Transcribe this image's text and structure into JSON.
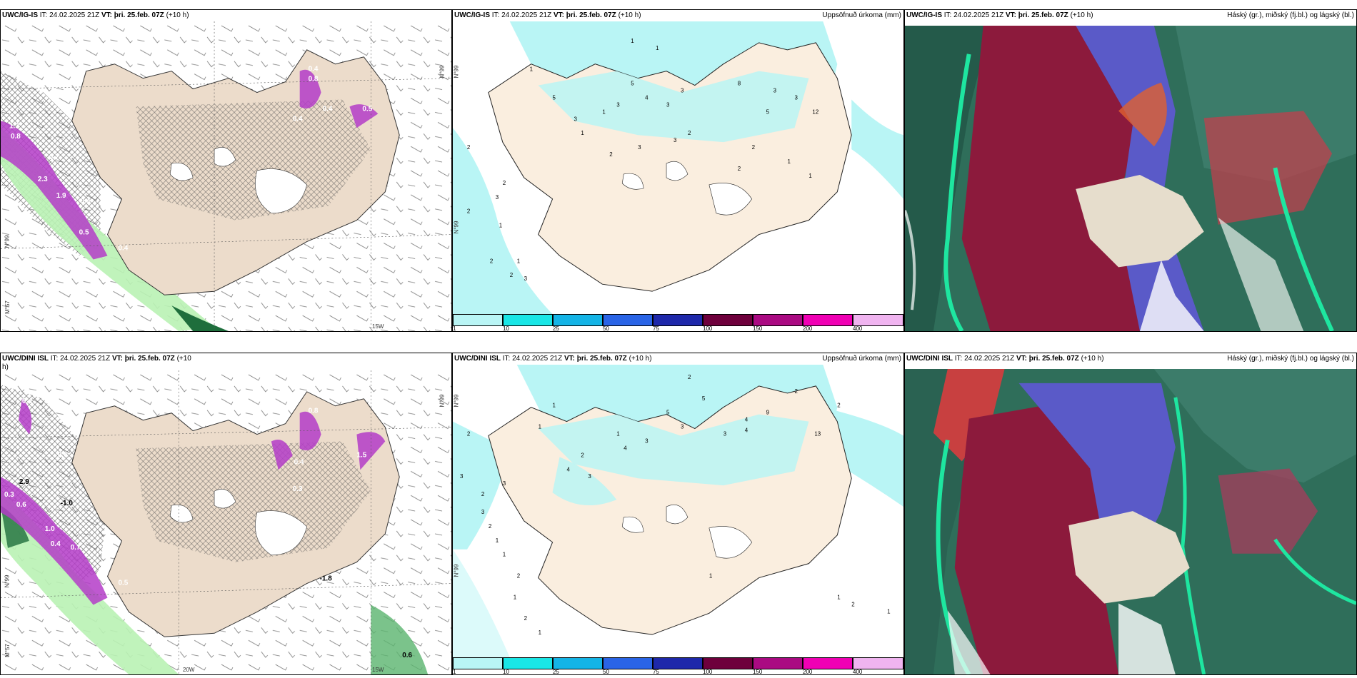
{
  "panels": [
    {
      "model": "UWC/IG-IS",
      "init": "IT: 24.02.2025 21Z",
      "valid": "VT: þri. 25.feb. 07Z",
      "lead": "(+10 h)",
      "product": "",
      "axis": [
        "N°99",
        "N°99",
        "M°57",
        "15W"
      ]
    },
    {
      "model": "UWC/IG-IS",
      "init": "IT: 24.02.2025 21Z",
      "valid": "VT: þri. 25.feb. 07Z",
      "lead": "(+10 h)",
      "product": "Uppsöfnuð úrkoma (mm)",
      "axis": [
        "N°99",
        "N°99"
      ]
    },
    {
      "model": "UWC/IG-IS",
      "init": "IT: 24.02.2025 21Z",
      "valid": "VT: þri. 25.feb. 07Z",
      "lead": "(+10 h)",
      "product": "Háský (gr.), miðský (fj.bl.) og lágský (bl.)"
    },
    {
      "model": "UWC/DINI ISL",
      "init": "IT: 24.02.2025 21Z",
      "valid": "VT: þri. 25.feb. 07Z",
      "lead": "(+10",
      "lead2": "h)",
      "product": "",
      "axis": [
        "N°99",
        "N°99",
        "M°57",
        "20W",
        "15W"
      ]
    },
    {
      "model": "UWC/DINI ISL",
      "init": "IT: 24.02.2025 21Z",
      "valid": "VT: þri. 25.feb. 07Z",
      "lead": "(+10 h)",
      "product": "Uppsöfnuð úrkoma (mm)",
      "axis": [
        "N°99",
        "N°99"
      ]
    },
    {
      "model": "UWC/DINI ISL",
      "init": "IT: 24.02.2025 21Z",
      "valid": "VT: þri. 25.feb. 07Z",
      "lead": "(+10 h)",
      "product": "Háský (gr.), miðský (fj.bl.) og lágský (bl.)"
    }
  ],
  "colorbar": {
    "labels": [
      "1",
      "10",
      "25",
      "50",
      "75",
      "100",
      "150",
      "200",
      "400"
    ],
    "colors": [
      "#b9f5f5",
      "#19e6e6",
      "#14b4e6",
      "#2a64e6",
      "#1e28aa",
      "#6e003c",
      "#aa0a82",
      "#f000b4",
      "#f0b4f0"
    ]
  },
  "precip_top": [
    "1",
    "1",
    "1",
    "5",
    "5",
    "1",
    "3",
    "4",
    "3",
    "3",
    "2",
    "8",
    "3",
    "5",
    "12",
    "3",
    "3",
    "1",
    "2",
    "3",
    "3",
    "2",
    "1",
    "1",
    "2",
    "2",
    "3",
    "1",
    "2",
    "1",
    "2",
    "3",
    "2",
    "2"
  ],
  "precip_bottom": [
    "2",
    "2",
    "1",
    "1",
    "5",
    "9",
    "5",
    "3",
    "4",
    "3",
    "13",
    "4",
    "2",
    "3",
    "4",
    "1",
    "2",
    "3",
    "2",
    "1",
    "4",
    "3",
    "2",
    "3",
    "3",
    "2",
    "1",
    "2",
    "1",
    "2",
    "1",
    "2",
    "1",
    "1",
    "1"
  ],
  "temps_top": [
    "1.3",
    "0.8",
    "0.7",
    "1.9",
    "0.4",
    "2.3",
    "0.5",
    "0.4",
    "0.4",
    "0.4",
    "0.8",
    "0.4",
    "0.5"
  ],
  "temps_bottom": [
    "0.4",
    "0.3",
    "-1.0",
    "2.9",
    "0.4",
    "0.6",
    "0.4",
    "1.0",
    "0.7",
    "0.8",
    "0.4",
    "0.3",
    "1.5",
    "0.5",
    "0.6",
    "-1.8"
  ],
  "cloud_legend": {
    "high": "gr.",
    "mid": "fj.bl.",
    "low": "bl."
  }
}
